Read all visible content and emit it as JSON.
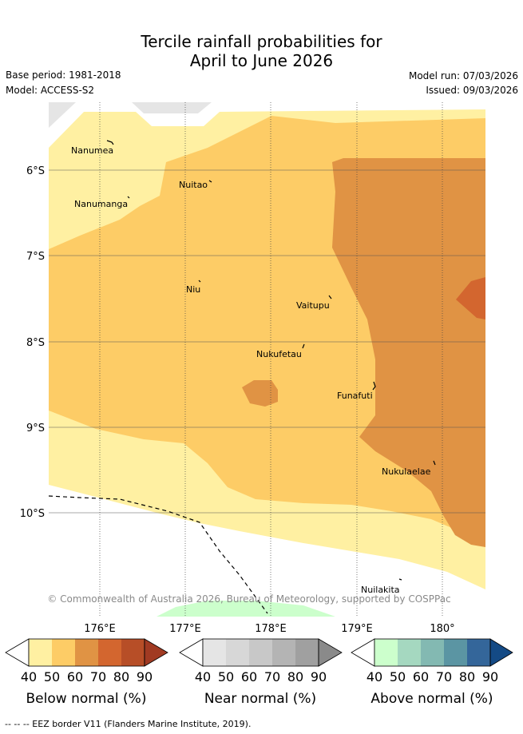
{
  "title": {
    "line1": "Tercile rainfall probabilities for",
    "line2": "April to June 2026"
  },
  "meta": {
    "base_period": "Base period: 1981-2018",
    "model": "Model: ACCESS-S2",
    "model_run": "Model run: 07/03/2026",
    "issued": "Issued: 09/03/2026"
  },
  "map": {
    "lat_labels": [
      "6°S",
      "7°S",
      "8°S",
      "9°S",
      "10°S"
    ],
    "lon_labels": [
      "176°E",
      "177°E",
      "178°E",
      "179°E",
      "180°"
    ],
    "islands": [
      {
        "name": "Nanumea"
      },
      {
        "name": "Nuitao"
      },
      {
        "name": "Nanumanga"
      },
      {
        "name": "Niu"
      },
      {
        "name": "Vaitupu"
      },
      {
        "name": "Nukufetau"
      },
      {
        "name": "Funafuti"
      },
      {
        "name": "Nukulaelae"
      },
      {
        "name": "Nuilakita"
      }
    ],
    "copyright": "© Commonwealth of Australia 2026, Bureau of Meteorology, supported by COSPPac",
    "category_colors": {
      "below_40_50": "#fff0a2",
      "below_50_60": "#fdcc66",
      "below_60_70": "#e09344",
      "below_70_80": "#d3662f",
      "above_40_50": "#ccffcc"
    }
  },
  "legends": [
    {
      "title": "Below normal (%)",
      "ticks": [
        "40",
        "50",
        "60",
        "70",
        "80",
        "90"
      ],
      "colors": [
        "#fff0a2",
        "#fdcc66",
        "#e09344",
        "#d3662f",
        "#b74e27",
        "#a13a22"
      ]
    },
    {
      "title": "Near normal (%)",
      "ticks": [
        "40",
        "50",
        "60",
        "70",
        "80",
        "90"
      ],
      "colors": [
        "#e5e5e5",
        "#d7d7d7",
        "#c8c8c8",
        "#b4b4b4",
        "#a0a0a0",
        "#8a8a8a"
      ]
    },
    {
      "title": "Above normal (%)",
      "ticks": [
        "40",
        "50",
        "60",
        "70",
        "80",
        "90"
      ],
      "colors": [
        "#ccffcc",
        "#a5d8c0",
        "#83b9b2",
        "#5b95a3",
        "#34669a",
        "#144a85"
      ]
    }
  ],
  "footer": "--  --  -- EEZ border V11 (Flanders Marine Institute, 2019)."
}
